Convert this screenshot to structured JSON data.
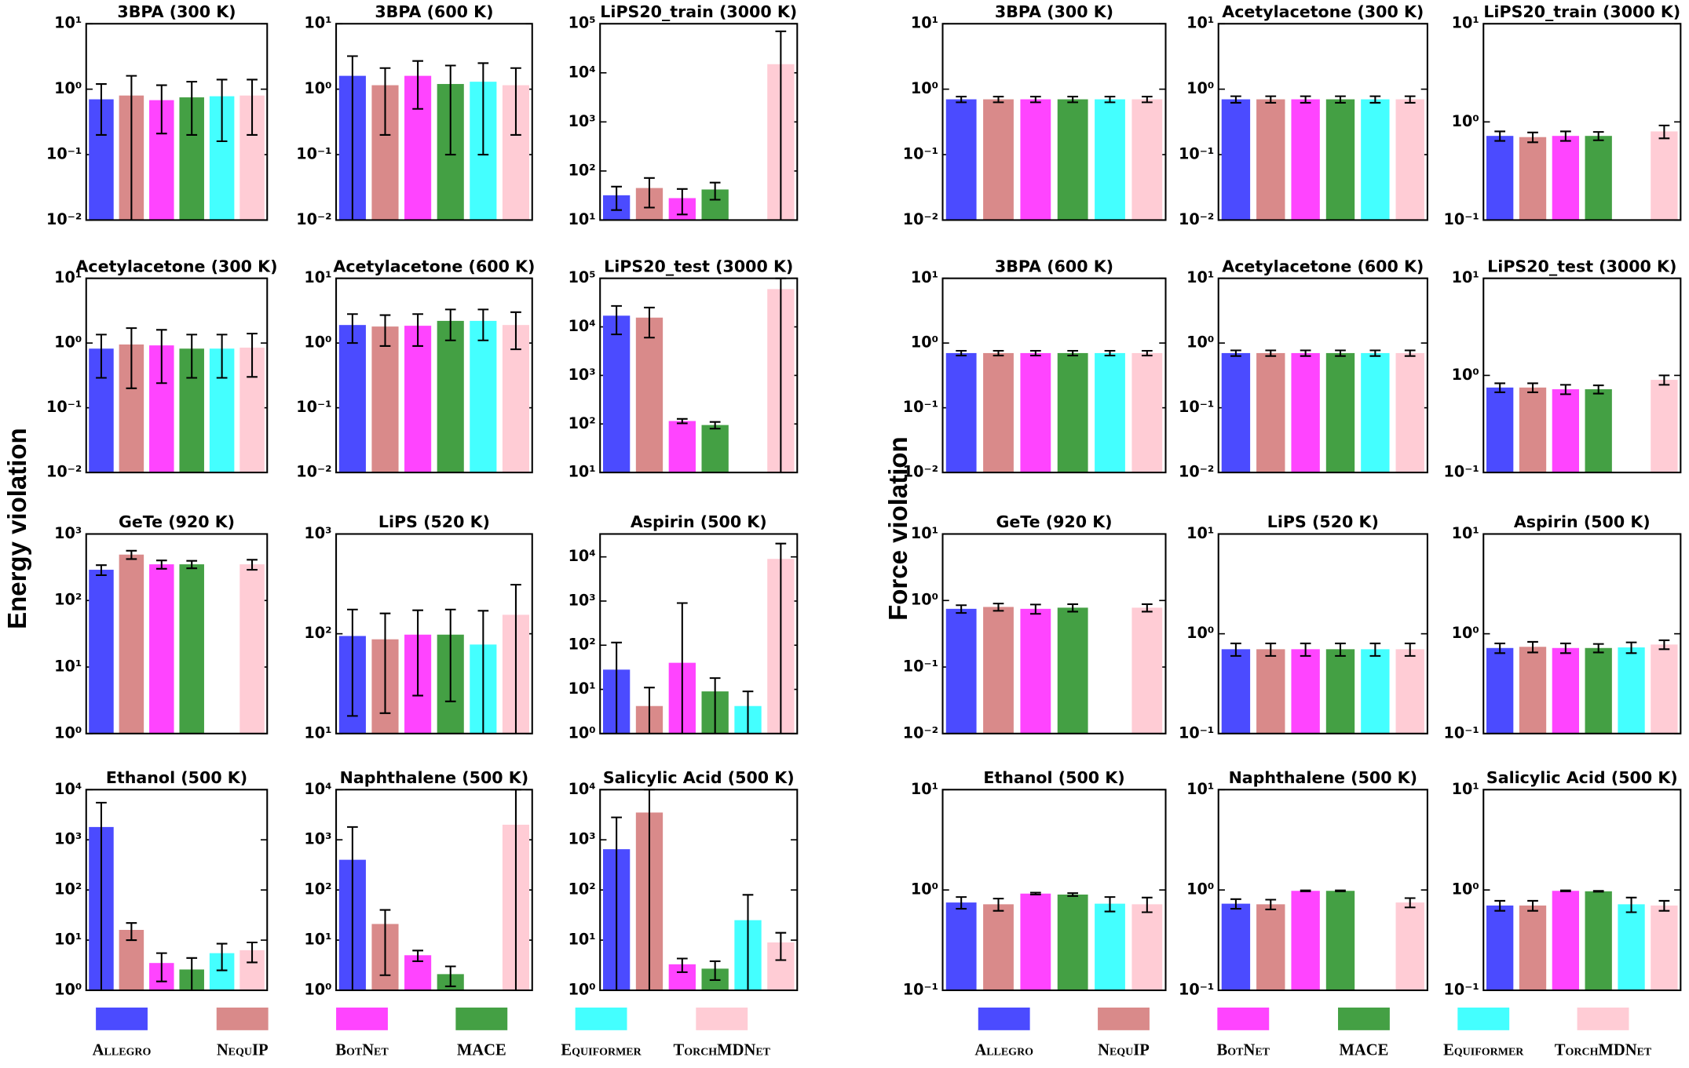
{
  "panel_labels": [
    "Energy violation",
    "Force violation"
  ],
  "legend": {
    "names": [
      "Allegro",
      "NequIP",
      "BotNet",
      "MACE",
      "Equiformer",
      "TorchMDNet"
    ],
    "colors": [
      "#4b4bff",
      "#d98a8a",
      "#ff44ff",
      "#44a044",
      "#44ffff",
      "#ffccd5"
    ]
  },
  "chart_data": [
    {
      "type": "bar",
      "title": "3BPA (300 K)",
      "log_scale": true,
      "ylim": [
        0.01,
        10
      ],
      "yticks": [
        {
          "value": 0.01,
          "label": "10⁻²"
        },
        {
          "value": 0.1,
          "label": "10⁻¹"
        },
        {
          "value": 1,
          "label": "10⁰"
        },
        {
          "value": 10,
          "label": "10¹"
        }
      ],
      "values": [
        0.7,
        0.8,
        0.68,
        0.75,
        0.78,
        0.8
      ],
      "errors": [
        0.5,
        0.8,
        0.47,
        0.55,
        0.62,
        0.6
      ]
    },
    {
      "type": "bar",
      "title": "3BPA (600 K)",
      "log_scale": true,
      "ylim": [
        0.01,
        10
      ],
      "yticks": [
        {
          "value": 0.01,
          "label": "10⁻²"
        },
        {
          "value": 0.1,
          "label": "10⁻¹"
        },
        {
          "value": 1,
          "label": "10⁰"
        },
        {
          "value": 10,
          "label": "10¹"
        }
      ],
      "values": [
        1.6,
        1.15,
        1.6,
        1.2,
        1.3,
        1.15
      ],
      "errors": [
        1.6,
        0.95,
        1.1,
        1.1,
        1.2,
        0.95
      ]
    },
    {
      "type": "bar",
      "title": "LiPS20_train (3000 K)",
      "log_scale": true,
      "ylim": [
        10,
        100000
      ],
      "yticks": [
        {
          "value": 10,
          "label": "10¹"
        },
        {
          "value": 100,
          "label": "10²"
        },
        {
          "value": 1000,
          "label": "10³"
        },
        {
          "value": 10000,
          "label": "10⁴"
        },
        {
          "value": 100000,
          "label": "10⁵"
        }
      ],
      "values": [
        32,
        45,
        28,
        42,
        null,
        15000
      ],
      "errors": [
        16,
        27,
        15,
        16,
        null,
        55000
      ]
    },
    {
      "type": "bar",
      "title": "Acetylacetone (300 K)",
      "log_scale": true,
      "ylim": [
        0.01,
        10
      ],
      "yticks": [
        {
          "value": 0.01,
          "label": "10⁻²"
        },
        {
          "value": 0.1,
          "label": "10⁻¹"
        },
        {
          "value": 1,
          "label": "10⁰"
        },
        {
          "value": 10,
          "label": "10¹"
        }
      ],
      "values": [
        0.82,
        0.95,
        0.92,
        0.82,
        0.82,
        0.85
      ],
      "errors": [
        0.53,
        0.75,
        0.68,
        0.53,
        0.53,
        0.55
      ]
    },
    {
      "type": "bar",
      "title": "Acetylacetone (600 K)",
      "log_scale": true,
      "ylim": [
        0.01,
        10
      ],
      "yticks": [
        {
          "value": 0.01,
          "label": "10⁻²"
        },
        {
          "value": 0.1,
          "label": "10⁻¹"
        },
        {
          "value": 1,
          "label": "10⁰"
        },
        {
          "value": 10,
          "label": "10¹"
        }
      ],
      "values": [
        1.9,
        1.8,
        1.85,
        2.2,
        2.2,
        1.9
      ],
      "errors": [
        0.9,
        0.9,
        0.95,
        1.1,
        1.1,
        1.1
      ]
    },
    {
      "type": "bar",
      "title": "LiPS20_test (3000 K)",
      "log_scale": true,
      "ylim": [
        10,
        100000
      ],
      "yticks": [
        {
          "value": 10,
          "label": "10¹"
        },
        {
          "value": 100,
          "label": "10²"
        },
        {
          "value": 1000,
          "label": "10³"
        },
        {
          "value": 10000,
          "label": "10⁴"
        },
        {
          "value": 100000,
          "label": "10⁵"
        }
      ],
      "values": [
        17000,
        15500,
        115,
        95,
        null,
        60000
      ],
      "errors": [
        10000,
        9500,
        12,
        15,
        null,
        60000
      ]
    },
    {
      "type": "bar",
      "title": "GeTe (920 K)",
      "log_scale": true,
      "ylim": [
        1,
        1000
      ],
      "yticks": [
        {
          "value": 1,
          "label": "10⁰"
        },
        {
          "value": 10,
          "label": "10¹"
        },
        {
          "value": 100,
          "label": "10²"
        },
        {
          "value": 1000,
          "label": "10³"
        }
      ],
      "values": [
        290,
        490,
        350,
        350,
        null,
        350
      ],
      "errors": [
        50,
        70,
        50,
        45,
        null,
        60
      ]
    },
    {
      "type": "bar",
      "title": "LiPS (520 K)",
      "log_scale": true,
      "ylim": [
        10,
        1000
      ],
      "yticks": [
        {
          "value": 10,
          "label": "10¹"
        },
        {
          "value": 100,
          "label": "10²"
        },
        {
          "value": 1000,
          "label": "10³"
        }
      ],
      "values": [
        95,
        88,
        98,
        98,
        78,
        155
      ],
      "errors": [
        80,
        72,
        74,
        77,
        92,
        155
      ]
    },
    {
      "type": "bar",
      "title": "Aspirin (500 K)",
      "log_scale": true,
      "ylim": [
        1,
        33000
      ],
      "yticks": [
        {
          "value": 1,
          "label": "10⁰"
        },
        {
          "value": 10,
          "label": "10¹"
        },
        {
          "value": 100,
          "label": "10²"
        },
        {
          "value": 1000,
          "label": "10³"
        },
        {
          "value": 10000,
          "label": "10⁴"
        }
      ],
      "values": [
        28,
        4.2,
        40,
        9,
        4.2,
        9000
      ],
      "errors": [
        87,
        6.8,
        860,
        9,
        4.8,
        11000
      ]
    },
    {
      "type": "bar",
      "title": "Ethanol (500 K)",
      "log_scale": true,
      "ylim": [
        1,
        10000
      ],
      "yticks": [
        {
          "value": 1,
          "label": "10⁰"
        },
        {
          "value": 10,
          "label": "10¹"
        },
        {
          "value": 100,
          "label": "10²"
        },
        {
          "value": 1000,
          "label": "10³"
        },
        {
          "value": 10000,
          "label": "10⁴"
        }
      ],
      "values": [
        1800,
        16,
        3.5,
        2.6,
        5.5,
        6.3
      ],
      "errors": [
        3700,
        6,
        2,
        1.8,
        3,
        2.7
      ]
    },
    {
      "type": "bar",
      "title": "Naphthalene (500 K)",
      "log_scale": true,
      "ylim": [
        1,
        10000
      ],
      "yticks": [
        {
          "value": 1,
          "label": "10⁰"
        },
        {
          "value": 10,
          "label": "10¹"
        },
        {
          "value": 100,
          "label": "10²"
        },
        {
          "value": 1000,
          "label": "10³"
        },
        {
          "value": 10000,
          "label": "10⁴"
        }
      ],
      "values": [
        400,
        21,
        5,
        2.1,
        null,
        2000
      ],
      "errors": [
        1400,
        19,
        1.2,
        0.9,
        null,
        8000
      ]
    },
    {
      "type": "bar",
      "title": "Salicylic Acid (500 K)",
      "log_scale": true,
      "ylim": [
        1,
        10000
      ],
      "yticks": [
        {
          "value": 1,
          "label": "10⁰"
        },
        {
          "value": 10,
          "label": "10¹"
        },
        {
          "value": 100,
          "label": "10²"
        },
        {
          "value": 1000,
          "label": "10³"
        },
        {
          "value": 10000,
          "label": "10⁴"
        }
      ],
      "values": [
        650,
        3500,
        3.3,
        2.7,
        25,
        9
      ],
      "errors": [
        2150,
        6500,
        1,
        1.1,
        55,
        5
      ]
    },
    {
      "type": "bar",
      "title": "3BPA (300 K)",
      "log_scale": true,
      "ylim": [
        0.01,
        10
      ],
      "yticks": [
        {
          "value": 0.01,
          "label": "10⁻²"
        },
        {
          "value": 0.1,
          "label": "10⁻¹"
        },
        {
          "value": 1,
          "label": "10⁰"
        },
        {
          "value": 10,
          "label": "10¹"
        }
      ],
      "values": [
        0.7,
        0.7,
        0.7,
        0.7,
        0.7,
        0.7
      ],
      "errors": [
        0.07,
        0.07,
        0.07,
        0.07,
        0.07,
        0.07
      ]
    },
    {
      "type": "bar",
      "title": "Acetylacetone (300 K)",
      "log_scale": true,
      "ylim": [
        0.01,
        10
      ],
      "yticks": [
        {
          "value": 0.01,
          "label": "10⁻²"
        },
        {
          "value": 0.1,
          "label": "10⁻¹"
        },
        {
          "value": 1,
          "label": "10⁰"
        },
        {
          "value": 10,
          "label": "10¹"
        }
      ],
      "values": [
        0.7,
        0.7,
        0.7,
        0.7,
        0.7,
        0.7
      ],
      "errors": [
        0.08,
        0.08,
        0.08,
        0.08,
        0.08,
        0.08
      ]
    },
    {
      "type": "bar",
      "title": "LiPS20_train (3000 K)",
      "log_scale": true,
      "ylim": [
        0.1,
        10
      ],
      "yticks": [
        {
          "value": 0.1,
          "label": "10⁻¹"
        },
        {
          "value": 1,
          "label": "10⁰"
        },
        {
          "value": 10,
          "label": "10¹"
        }
      ],
      "values": [
        0.72,
        0.7,
        0.72,
        0.72,
        null,
        0.8
      ],
      "errors": [
        0.08,
        0.08,
        0.08,
        0.07,
        null,
        0.12
      ]
    },
    {
      "type": "bar",
      "title": "3BPA (600 K)",
      "log_scale": true,
      "ylim": [
        0.01,
        10
      ],
      "yticks": [
        {
          "value": 0.01,
          "label": "10⁻²"
        },
        {
          "value": 0.1,
          "label": "10⁻¹"
        },
        {
          "value": 1,
          "label": "10⁰"
        },
        {
          "value": 10,
          "label": "10¹"
        }
      ],
      "values": [
        0.7,
        0.7,
        0.7,
        0.7,
        0.7,
        0.7
      ],
      "errors": [
        0.06,
        0.06,
        0.06,
        0.06,
        0.06,
        0.06
      ]
    },
    {
      "type": "bar",
      "title": "Acetylacetone (600 K)",
      "log_scale": true,
      "ylim": [
        0.01,
        10
      ],
      "yticks": [
        {
          "value": 0.01,
          "label": "10⁻²"
        },
        {
          "value": 0.1,
          "label": "10⁻¹"
        },
        {
          "value": 1,
          "label": "10⁰"
        },
        {
          "value": 10,
          "label": "10¹"
        }
      ],
      "values": [
        0.7,
        0.7,
        0.7,
        0.7,
        0.7,
        0.7
      ],
      "errors": [
        0.07,
        0.07,
        0.07,
        0.07,
        0.07,
        0.07
      ]
    },
    {
      "type": "bar",
      "title": "LiPS20_test (3000 K)",
      "log_scale": true,
      "ylim": [
        0.1,
        10
      ],
      "yticks": [
        {
          "value": 0.1,
          "label": "10⁻¹"
        },
        {
          "value": 1,
          "label": "10⁰"
        },
        {
          "value": 10,
          "label": "10¹"
        }
      ],
      "values": [
        0.75,
        0.75,
        0.72,
        0.72,
        null,
        0.9
      ],
      "errors": [
        0.08,
        0.08,
        0.08,
        0.07,
        null,
        0.1
      ]
    },
    {
      "type": "bar",
      "title": "GeTe (920 K)",
      "log_scale": true,
      "ylim": [
        0.01,
        10
      ],
      "yticks": [
        {
          "value": 0.01,
          "label": "10⁻²"
        },
        {
          "value": 0.1,
          "label": "10⁻¹"
        },
        {
          "value": 1,
          "label": "10⁰"
        },
        {
          "value": 10,
          "label": "10¹"
        }
      ],
      "values": [
        0.75,
        0.8,
        0.75,
        0.78,
        null,
        0.78
      ],
      "errors": [
        0.1,
        0.1,
        0.12,
        0.1,
        null,
        0.1
      ]
    },
    {
      "type": "bar",
      "title": "LiPS (520 K)",
      "log_scale": true,
      "ylim": [
        0.1,
        10
      ],
      "yticks": [
        {
          "value": 0.1,
          "label": "10⁻¹"
        },
        {
          "value": 1,
          "label": "10⁰"
        },
        {
          "value": 10,
          "label": "10¹"
        }
      ],
      "values": [
        0.7,
        0.7,
        0.7,
        0.7,
        0.7,
        0.7
      ],
      "errors": [
        0.1,
        0.1,
        0.1,
        0.1,
        0.1,
        0.1
      ]
    },
    {
      "type": "bar",
      "title": "Aspirin (500 K)",
      "log_scale": true,
      "ylim": [
        0.1,
        10
      ],
      "yticks": [
        {
          "value": 0.1,
          "label": "10⁻¹"
        },
        {
          "value": 1,
          "label": "10⁰"
        },
        {
          "value": 10,
          "label": "10¹"
        }
      ],
      "values": [
        0.72,
        0.74,
        0.72,
        0.72,
        0.73,
        0.78
      ],
      "errors": [
        0.08,
        0.09,
        0.08,
        0.07,
        0.09,
        0.08
      ]
    },
    {
      "type": "bar",
      "title": "Ethanol (500 K)",
      "log_scale": true,
      "ylim": [
        0.1,
        10
      ],
      "yticks": [
        {
          "value": 0.1,
          "label": "10⁻¹"
        },
        {
          "value": 1,
          "label": "10⁰"
        },
        {
          "value": 10,
          "label": "10¹"
        }
      ],
      "values": [
        0.75,
        0.72,
        0.92,
        0.9,
        0.73,
        0.72
      ],
      "errors": [
        0.1,
        0.1,
        0.02,
        0.03,
        0.12,
        0.12
      ]
    },
    {
      "type": "bar",
      "title": "Naphthalene (500 K)",
      "log_scale": true,
      "ylim": [
        0.1,
        10
      ],
      "yticks": [
        {
          "value": 0.1,
          "label": "10⁻¹"
        },
        {
          "value": 1,
          "label": "10⁰"
        },
        {
          "value": 10,
          "label": "10¹"
        }
      ],
      "values": [
        0.73,
        0.72,
        0.98,
        0.98,
        null,
        0.75
      ],
      "errors": [
        0.08,
        0.08,
        0.01,
        0.01,
        null,
        0.08
      ]
    },
    {
      "type": "bar",
      "title": "Salicylic Acid (500 K)",
      "log_scale": true,
      "ylim": [
        0.1,
        10
      ],
      "yticks": [
        {
          "value": 0.1,
          "label": "10⁻¹"
        },
        {
          "value": 1,
          "label": "10⁰"
        },
        {
          "value": 10,
          "label": "10¹"
        }
      ],
      "values": [
        0.7,
        0.7,
        0.98,
        0.97,
        0.72,
        0.7
      ],
      "errors": [
        0.08,
        0.08,
        0.01,
        0.01,
        0.12,
        0.08
      ]
    }
  ]
}
